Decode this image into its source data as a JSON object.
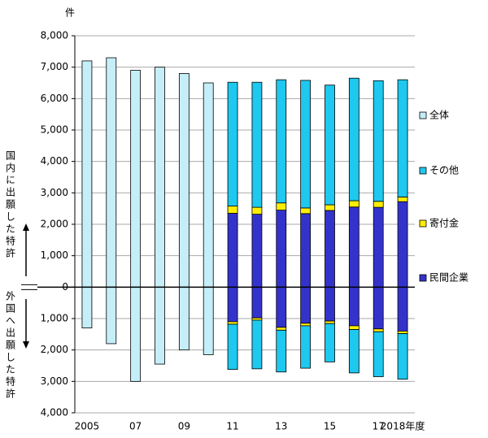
{
  "chart_data": {
    "type": "bar",
    "stacked": true,
    "y_axis_label": "件",
    "upper_label": "国内に出願した特許",
    "lower_label": "外国へ出願した特許",
    "categories": [
      "2005",
      null,
      "07",
      null,
      "09",
      null,
      "11",
      null,
      "13",
      null,
      "15",
      null,
      "17",
      "2018年度"
    ],
    "ylim": [
      -4000,
      8000
    ],
    "yticks": [
      {
        "value": -4000,
        "label": "4,000"
      },
      {
        "value": -3000,
        "label": "3,000"
      },
      {
        "value": -2000,
        "label": "2,000"
      },
      {
        "value": -1000,
        "label": "1,000"
      },
      0,
      {
        "value": 1000,
        "label": "1,000"
      },
      {
        "value": 2000,
        "label": "2,000"
      },
      {
        "value": 3000,
        "label": "3,000"
      },
      {
        "value": 4000,
        "label": "4,000"
      },
      {
        "value": 5000,
        "label": "5,000"
      },
      {
        "value": 6000,
        "label": "6,000"
      },
      {
        "value": 7000,
        "label": "7,000"
      },
      {
        "value": 8000,
        "label": "8,000"
      }
    ],
    "grid": true,
    "legend": "right",
    "series": [
      {
        "name": "全体",
        "color": "#c5eef8",
        "values": [
          7200,
          7300,
          6900,
          7000,
          6800,
          6500,
          null,
          null,
          null,
          null,
          null,
          null,
          null,
          null
        ],
        "lower_values": [
          -1300,
          -1800,
          -3000,
          -2450,
          -2000,
          -2150,
          null,
          null,
          null,
          null,
          null,
          null,
          null,
          null
        ]
      },
      {
        "name": "その他",
        "color": "#1ec8ee",
        "values": [
          null,
          null,
          null,
          null,
          null,
          null,
          3940,
          3980,
          3920,
          4060,
          3810,
          3900,
          3840,
          3730
        ],
        "lower_values": [
          null,
          null,
          null,
          null,
          null,
          null,
          -1440,
          -1550,
          -1330,
          -1350,
          -1220,
          -1380,
          -1430,
          -1450
        ]
      },
      {
        "name": "寄付金",
        "color": "#ffee00",
        "values": [
          null,
          null,
          null,
          null,
          null,
          null,
          230,
          220,
          230,
          180,
          180,
          200,
          190,
          150
        ],
        "lower_values": [
          null,
          null,
          null,
          null,
          null,
          null,
          -80,
          -70,
          -90,
          -80,
          -80,
          -120,
          -90,
          -80
        ]
      },
      {
        "name": "民間企業",
        "color": "#3333cc",
        "values": [
          null,
          null,
          null,
          null,
          null,
          null,
          2350,
          2320,
          2450,
          2340,
          2440,
          2550,
          2540,
          2720
        ],
        "lower_values": [
          null,
          null,
          null,
          null,
          null,
          null,
          -1100,
          -980,
          -1280,
          -1150,
          -1080,
          -1230,
          -1330,
          -1400
        ]
      }
    ]
  }
}
